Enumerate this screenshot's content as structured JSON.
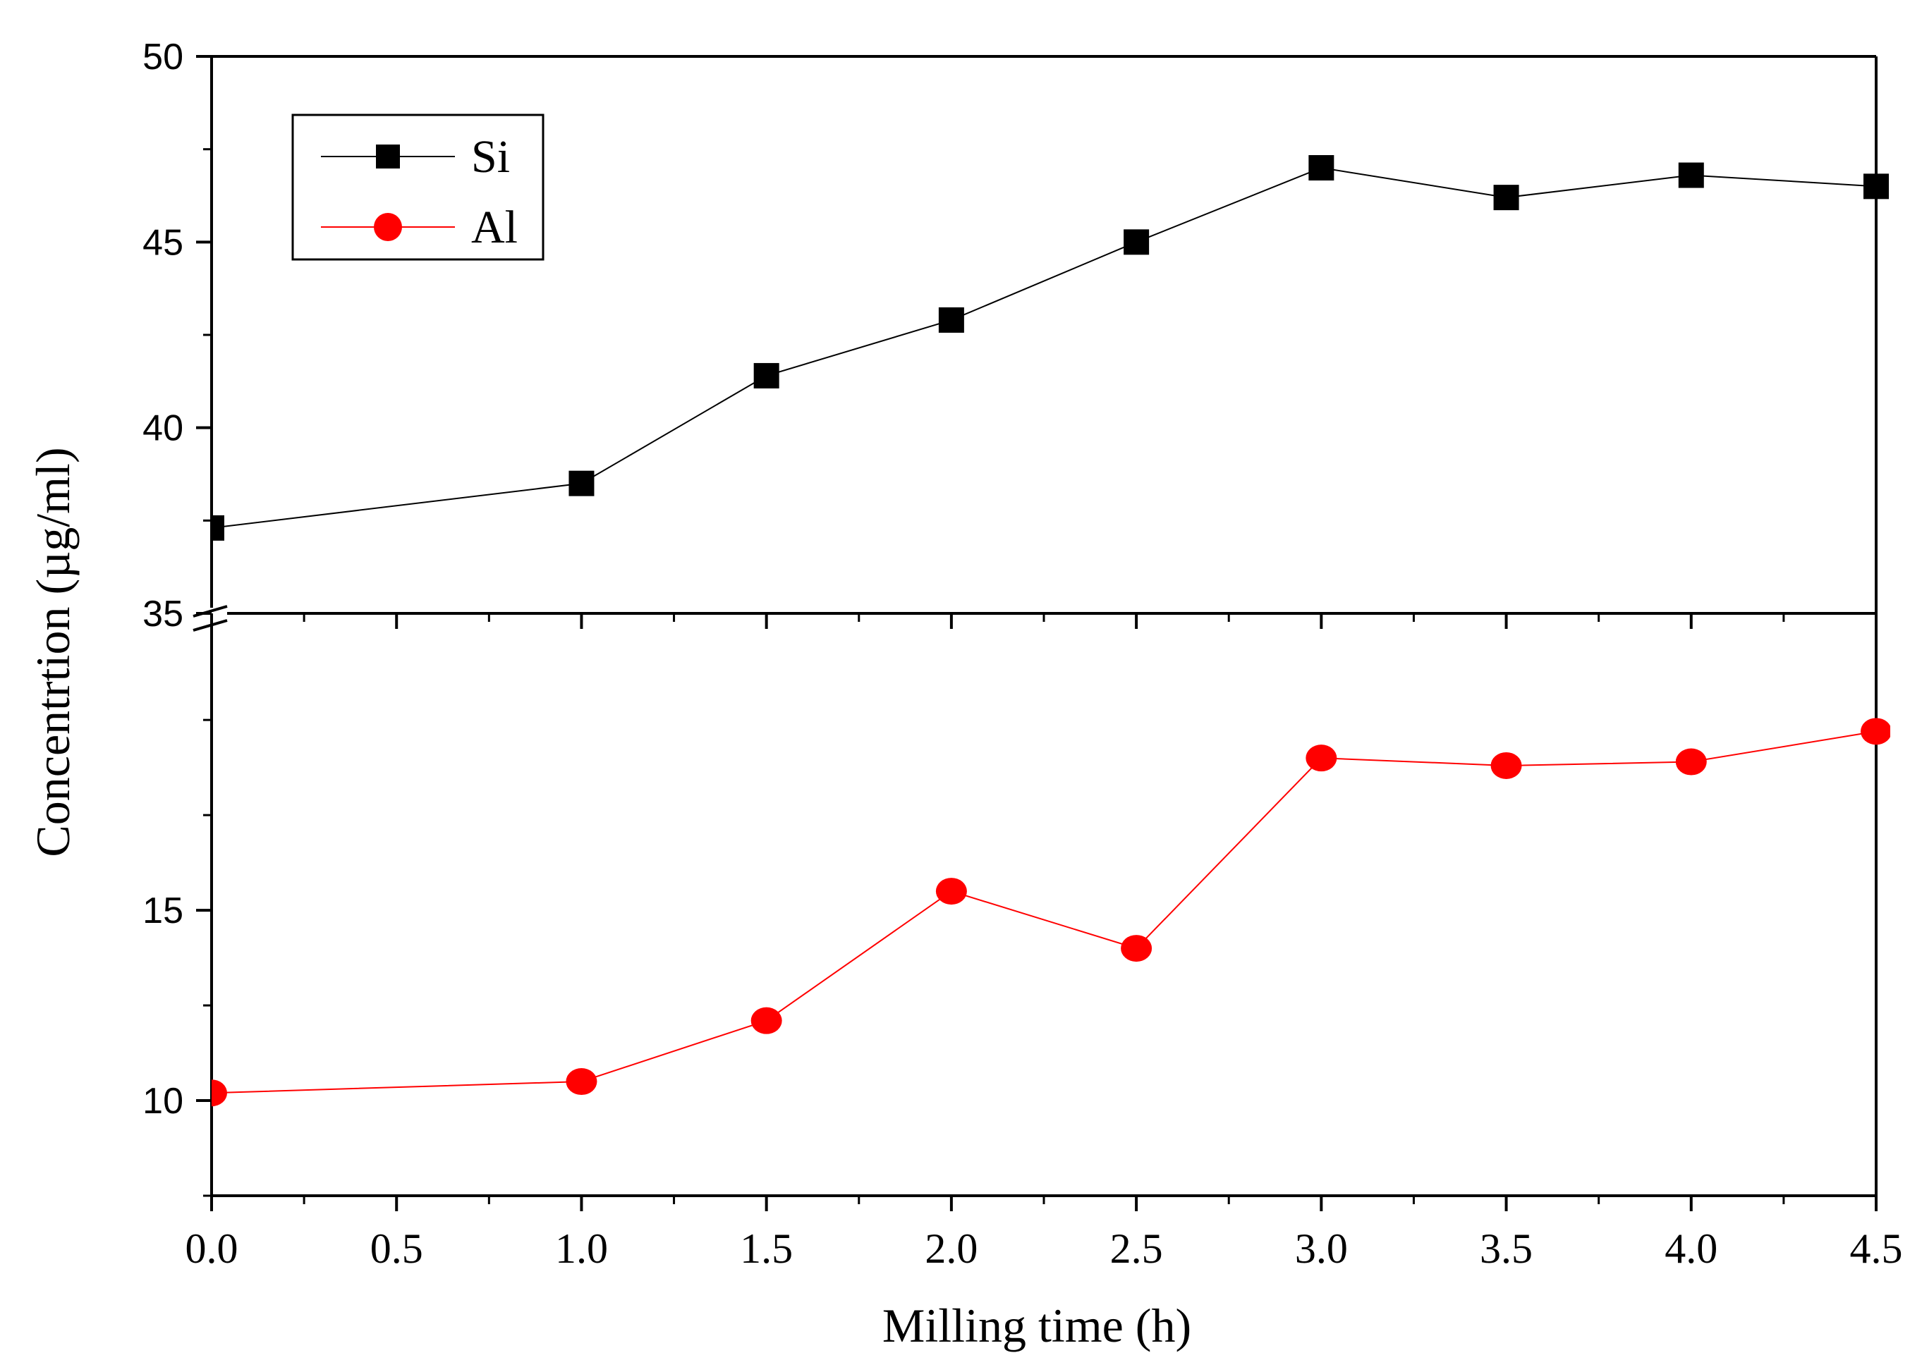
{
  "chart_data": {
    "type": "line",
    "title": "",
    "xlabel": "Milling time (h)",
    "ylabel": "Concentrtion (µg/ml)",
    "xlim": [
      0,
      4.5
    ],
    "x_ticks": [
      "0.0",
      "0.5",
      "1.0",
      "1.5",
      "2.0",
      "2.5",
      "3.0",
      "3.5",
      "4.0",
      "4.5"
    ],
    "broken_y_axis": true,
    "upper_panel": {
      "ylim": [
        35,
        50
      ],
      "y_ticks": [
        "35",
        "40",
        "45",
        "50"
      ]
    },
    "lower_panel": {
      "ylim": [
        7.5,
        22.8
      ],
      "y_ticks": [
        "10",
        "15"
      ]
    },
    "legend_position": "top-left",
    "series": [
      {
        "name": "Si",
        "panel": "upper",
        "color": "#000000",
        "marker": "square",
        "x": [
          0,
          1.0,
          1.5,
          2.0,
          2.5,
          3.0,
          3.5,
          4.0,
          4.5
        ],
        "y": [
          37.3,
          38.5,
          41.4,
          42.9,
          45.0,
          47.0,
          46.2,
          46.8,
          46.5
        ]
      },
      {
        "name": "Al",
        "panel": "lower",
        "color": "#ff0000",
        "marker": "circle",
        "x": [
          0,
          1.0,
          1.5,
          2.0,
          2.5,
          3.0,
          3.5,
          4.0,
          4.5
        ],
        "y": [
          10.2,
          10.5,
          12.1,
          15.5,
          14.0,
          19.0,
          18.8,
          18.9,
          19.7
        ]
      }
    ]
  }
}
